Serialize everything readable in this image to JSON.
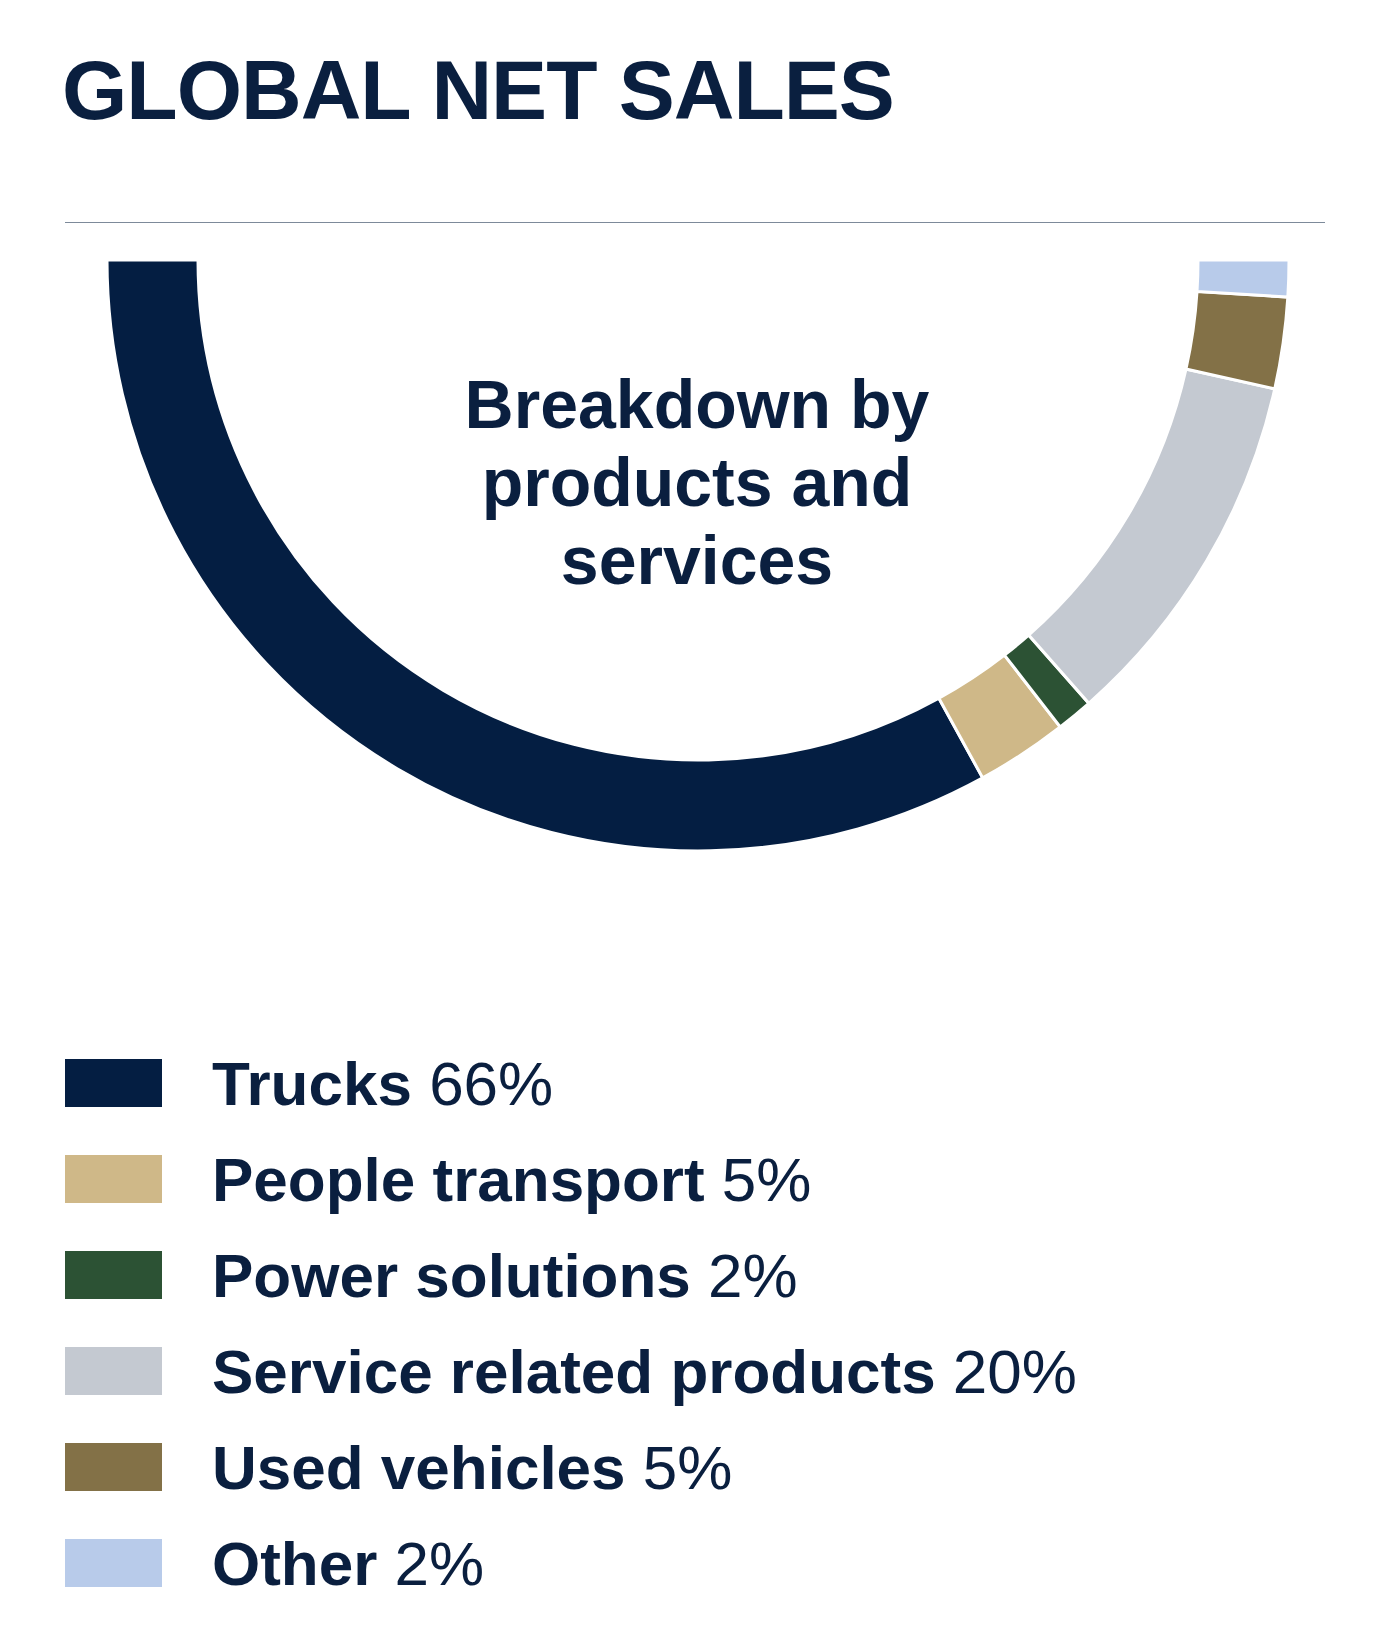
{
  "chart_data": {
    "type": "donut",
    "title": "GLOBAL NET SALES",
    "subtitle": "Breakdown by products and services",
    "categories": [
      "Trucks",
      "People transport",
      "Power solutions",
      "Service related products",
      "Used vehicles",
      "Other"
    ],
    "values": [
      66,
      5,
      2,
      20,
      5,
      2
    ],
    "value_labels": [
      "66%",
      "5%",
      "2%",
      "20%",
      "5%",
      "2%"
    ],
    "colors": [
      "#041e42",
      "#cfb888",
      "#2c5234",
      "#c4c9d1",
      "#837147",
      "#b8cbea"
    ],
    "legend": "bottom"
  }
}
